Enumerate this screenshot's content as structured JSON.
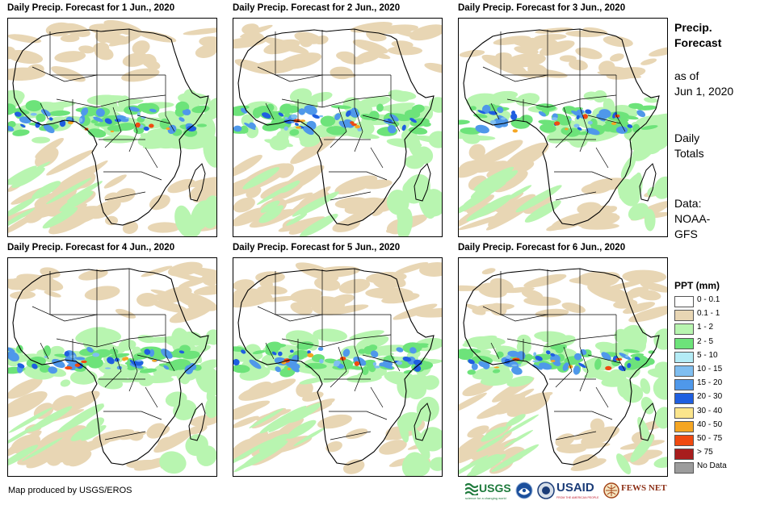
{
  "panels": [
    {
      "title": "Daily Precip. Forecast for 1 Jun., 2020"
    },
    {
      "title": "Daily Precip. Forecast for 2 Jun., 2020"
    },
    {
      "title": "Daily Precip. Forecast for 3 Jun., 2020"
    },
    {
      "title": "Daily Precip. Forecast for 4 Jun., 2020"
    },
    {
      "title": "Daily Precip. Forecast for 5 Jun., 2020"
    },
    {
      "title": "Daily Precip. Forecast for 6 Jun., 2020"
    }
  ],
  "side_info": {
    "title_line1": "Precip.",
    "title_line2": "Forecast",
    "asof_line1": "as of",
    "asof_line2": "Jun 1, 2020",
    "totals_line1": "Daily",
    "totals_line2": "Totals",
    "data_line1": "Data:",
    "data_line2": "NOAA-",
    "data_line3": "GFS"
  },
  "legend": {
    "title": "PPT (mm)",
    "items": [
      {
        "label": "0 - 0.1",
        "color": "#ffffff"
      },
      {
        "label": "0.1 - 1",
        "color": "#e8d6b4"
      },
      {
        "label": "1 - 2",
        "color": "#b8f5b0"
      },
      {
        "label": "2 - 5",
        "color": "#6de37a"
      },
      {
        "label": "5 - 10",
        "color": "#b4ecf6"
      },
      {
        "label": "10 - 15",
        "color": "#7fbef0"
      },
      {
        "label": "15 - 20",
        "color": "#4f98ea"
      },
      {
        "label": "20 - 30",
        "color": "#1f5fe0"
      },
      {
        "label": "30 - 40",
        "color": "#fbe58c"
      },
      {
        "label": "40 - 50",
        "color": "#f5a623"
      },
      {
        "label": "50 - 75",
        "color": "#f04a10"
      },
      {
        "label": "> 75",
        "color": "#a81d1d"
      },
      {
        "label": "No Data",
        "color": "#9c9c9c"
      }
    ]
  },
  "credit": "Map produced by USGS/EROS",
  "logos": {
    "usgs": "USGS",
    "usgs_tagline": "science for a changing world",
    "usaid": "USAID",
    "usaid_tagline": "FROM THE AMERICAN PEOPLE",
    "fewsnet": "FEWS NET"
  }
}
